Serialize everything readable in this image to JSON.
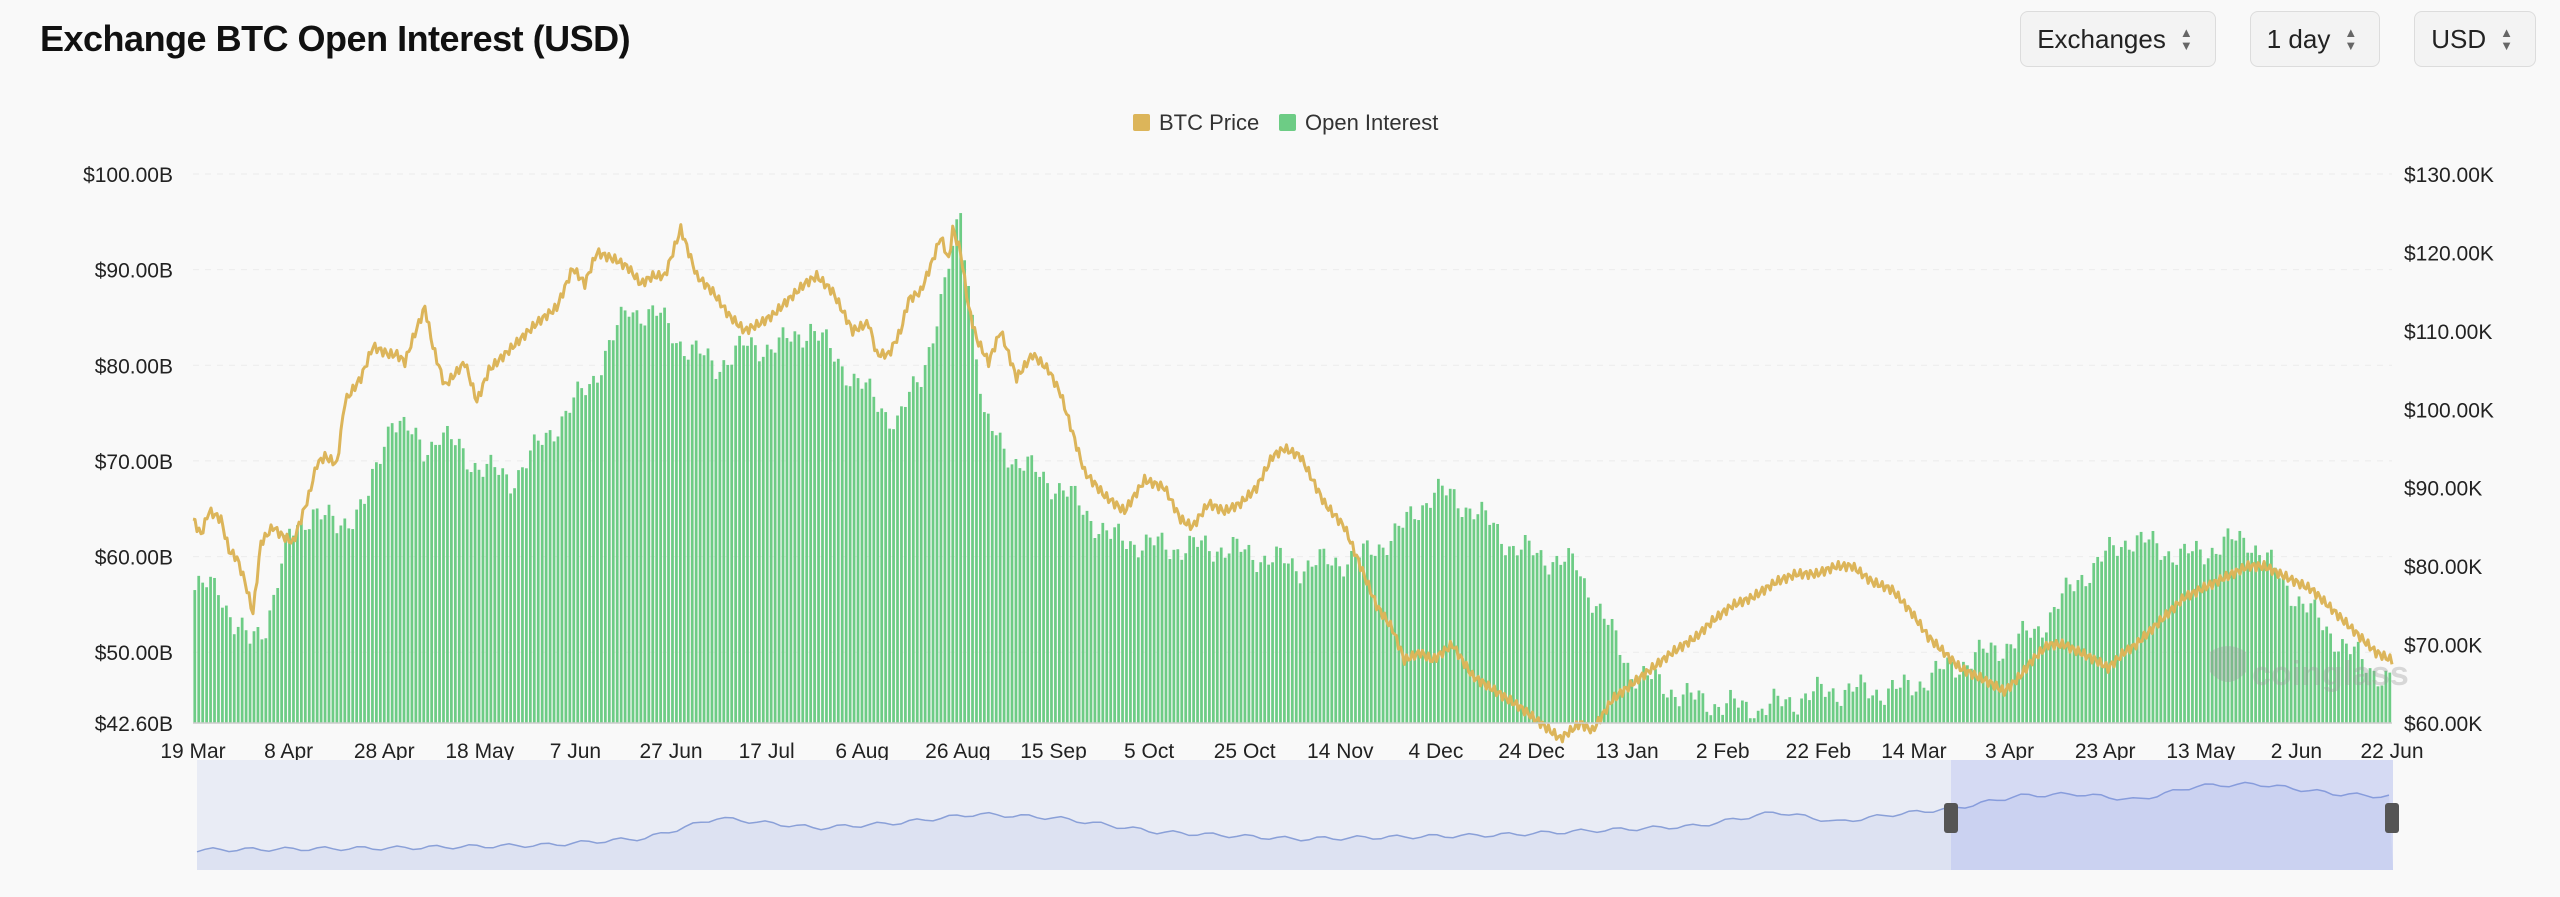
{
  "header": {
    "title": "Exchange BTC Open Interest (USD)",
    "selectors": [
      {
        "label": "Exchanges",
        "icon": "chevron-updown-icon"
      },
      {
        "label": "1 day",
        "icon": "chevron-updown-icon"
      },
      {
        "label": "USD",
        "icon": "chevron-updown-icon"
      }
    ]
  },
  "watermark": "coinglass",
  "colors": {
    "btc_price": "#dcb55a",
    "open_interest": "#6dcc85",
    "navigator": "#8aa0d8"
  },
  "chart_data": {
    "type": "bar",
    "title": "Exchange BTC Open Interest (USD)",
    "legend": {
      "placement": "top-center",
      "entries": [
        "BTC Price",
        "Open Interest"
      ]
    },
    "x_tick_labels": [
      "19 Mar",
      "8 Apr",
      "28 Apr",
      "18 May",
      "7 Jun",
      "27 Jun",
      "17 Jul",
      "6 Aug",
      "26 Aug",
      "15 Sep",
      "5 Oct",
      "25 Oct",
      "14 Nov",
      "4 Dec",
      "24 Dec",
      "13 Jan",
      "2 Feb",
      "22 Feb",
      "14 Mar",
      "3 Apr",
      "23 Apr",
      "13 May",
      "2 Jun",
      "22 Jun"
    ],
    "y_left": {
      "ticks": [
        "$42.60B",
        "$50.00B",
        "$60.00B",
        "$70.00B",
        "$80.00B",
        "$90.00B",
        "$100.00B"
      ],
      "min": 42.6,
      "max": 100,
      "unit": "B USD"
    },
    "y_right": {
      "ticks": [
        "$60.00K",
        "$70.00K",
        "$80.00K",
        "$90.00K",
        "$100.00K",
        "$110.00K",
        "$120.00K",
        "$130.00K"
      ],
      "min": 60,
      "max": 130,
      "unit": "K USD"
    },
    "grid": true,
    "series": [
      {
        "name": "Open Interest",
        "type": "bar",
        "axis": "left",
        "anchors": [
          [
            0,
            56.5
          ],
          [
            6,
            57
          ],
          [
            10,
            53
          ],
          [
            14,
            51
          ],
          [
            18,
            53
          ],
          [
            20,
            56
          ],
          [
            24,
            62
          ],
          [
            30,
            65
          ],
          [
            36,
            63
          ],
          [
            44,
            66
          ],
          [
            50,
            75
          ],
          [
            58,
            71
          ],
          [
            62,
            73
          ],
          [
            70,
            70
          ],
          [
            80,
            68
          ],
          [
            90,
            73
          ],
          [
            100,
            78
          ],
          [
            110,
            86
          ],
          [
            118,
            85
          ],
          [
            124,
            82
          ],
          [
            132,
            80
          ],
          [
            140,
            82
          ],
          [
            148,
            82
          ],
          [
            156,
            84
          ],
          [
            166,
            79
          ],
          [
            178,
            74
          ],
          [
            184,
            79
          ],
          [
            190,
            88
          ],
          [
            194,
            96
          ],
          [
            196,
            89
          ],
          [
            200,
            74
          ],
          [
            208,
            70
          ],
          [
            220,
            67
          ],
          [
            232,
            62
          ],
          [
            246,
            61
          ],
          [
            260,
            61
          ],
          [
            280,
            59
          ],
          [
            296,
            60
          ],
          [
            306,
            63
          ],
          [
            314,
            67
          ],
          [
            324,
            65
          ],
          [
            334,
            61
          ],
          [
            350,
            59
          ],
          [
            364,
            48
          ],
          [
            380,
            45
          ],
          [
            396,
            44
          ],
          [
            414,
            46
          ],
          [
            432,
            46
          ],
          [
            448,
            49
          ],
          [
            466,
            52
          ],
          [
            478,
            58
          ],
          [
            490,
            62
          ],
          [
            504,
            60
          ],
          [
            520,
            62
          ],
          [
            534,
            55
          ],
          [
            546,
            50
          ],
          [
            556,
            47
          ]
        ]
      },
      {
        "name": "BTC Price",
        "type": "line",
        "axis": "right",
        "anchors": [
          [
            0,
            86
          ],
          [
            4,
            84
          ],
          [
            8,
            87
          ],
          [
            14,
            86
          ],
          [
            18,
            82
          ],
          [
            22,
            81
          ],
          [
            26,
            78
          ],
          [
            30,
            74
          ],
          [
            34,
            83
          ],
          [
            40,
            85
          ],
          [
            44,
            84
          ],
          [
            50,
            83
          ],
          [
            58,
            89
          ],
          [
            62,
            93
          ],
          [
            66,
            94
          ],
          [
            72,
            93
          ],
          [
            76,
            101
          ],
          [
            84,
            104
          ],
          [
            90,
            108
          ],
          [
            98,
            107
          ],
          [
            102,
            107
          ],
          [
            106,
            106
          ],
          [
            110,
            109
          ],
          [
            116,
            113
          ],
          [
            120,
            108
          ],
          [
            126,
            103
          ],
          [
            136,
            106
          ],
          [
            142,
            101
          ],
          [
            148,
            105
          ],
          [
            156,
            107
          ],
          [
            164,
            109
          ],
          [
            172,
            111
          ],
          [
            182,
            113
          ],
          [
            190,
            118
          ],
          [
            196,
            116
          ],
          [
            202,
            120
          ],
          [
            212,
            119
          ],
          [
            218,
            118
          ],
          [
            224,
            116
          ],
          [
            230,
            117
          ],
          [
            236,
            117
          ],
          [
            244,
            123
          ],
          [
            252,
            117
          ],
          [
            260,
            115
          ],
          [
            268,
            112
          ],
          [
            276,
            110
          ],
          [
            284,
            111
          ],
          [
            290,
            112
          ],
          [
            298,
            114
          ],
          [
            306,
            116
          ],
          [
            312,
            117
          ],
          [
            320,
            115
          ],
          [
            330,
            110
          ],
          [
            338,
            111
          ],
          [
            342,
            107
          ],
          [
            348,
            107
          ],
          [
            354,
            110
          ],
          [
            358,
            114
          ],
          [
            364,
            115
          ],
          [
            370,
            119
          ],
          [
            374,
            122
          ],
          [
            378,
            119
          ],
          [
            380,
            123
          ],
          [
            384,
            120
          ],
          [
            388,
            113
          ],
          [
            392,
            109
          ],
          [
            398,
            106
          ],
          [
            404,
            110
          ],
          [
            412,
            104
          ],
          [
            420,
            107
          ],
          [
            428,
            105
          ],
          [
            434,
            102
          ],
          [
            446,
            92
          ],
          [
            456,
            89
          ],
          [
            466,
            87
          ],
          [
            476,
            91
          ],
          [
            486,
            90
          ],
          [
            494,
            86
          ],
          [
            500,
            85
          ],
          [
            508,
            88
          ],
          [
            516,
            87
          ],
          [
            524,
            88
          ],
          [
            532,
            90
          ],
          [
            540,
            94
          ],
          [
            546,
            95
          ],
          [
            554,
            94
          ],
          [
            558,
            92
          ],
          [
            566,
            88
          ],
          [
            576,
            85
          ],
          [
            584,
            80
          ],
          [
            592,
            75
          ],
          [
            600,
            72
          ],
          [
            606,
            68
          ],
          [
            614,
            69
          ],
          [
            620,
            68
          ],
          [
            630,
            70
          ],
          [
            640,
            66
          ],
          [
            652,
            64
          ],
          [
            664,
            62
          ],
          [
            674,
            60
          ],
          [
            684,
            58
          ],
          [
            694,
            60
          ],
          [
            700,
            59
          ],
          [
            710,
            63
          ],
          [
            720,
            65
          ],
          [
            730,
            67
          ],
          [
            740,
            69
          ],
          [
            752,
            71
          ],
          [
            760,
            73
          ],
          [
            770,
            75
          ],
          [
            780,
            76
          ],
          [
            792,
            78
          ],
          [
            802,
            79
          ],
          [
            812,
            79
          ],
          [
            822,
            80
          ],
          [
            830,
            80
          ],
          [
            840,
            78
          ],
          [
            850,
            77
          ],
          [
            860,
            74
          ],
          [
            868,
            71
          ],
          [
            876,
            69
          ],
          [
            884,
            67
          ],
          [
            892,
            66
          ],
          [
            900,
            65
          ],
          [
            906,
            64
          ],
          [
            914,
            66
          ],
          [
            920,
            68
          ],
          [
            928,
            70
          ],
          [
            936,
            70
          ],
          [
            944,
            69
          ],
          [
            952,
            68
          ],
          [
            958,
            67
          ],
          [
            966,
            69
          ],
          [
            972,
            70
          ],
          [
            980,
            72
          ],
          [
            988,
            74
          ],
          [
            996,
            76
          ],
          [
            1004,
            77
          ],
          [
            1012,
            78
          ],
          [
            1020,
            79
          ],
          [
            1028,
            80
          ],
          [
            1036,
            80
          ],
          [
            1044,
            79
          ],
          [
            1052,
            78
          ],
          [
            1060,
            77
          ],
          [
            1068,
            75
          ],
          [
            1076,
            73
          ],
          [
            1084,
            71
          ],
          [
            1092,
            69
          ],
          [
            1100,
            68
          ]
        ]
      }
    ],
    "navigator": {
      "selected_range": [
        "19 Mar",
        "22 Jun"
      ]
    }
  }
}
